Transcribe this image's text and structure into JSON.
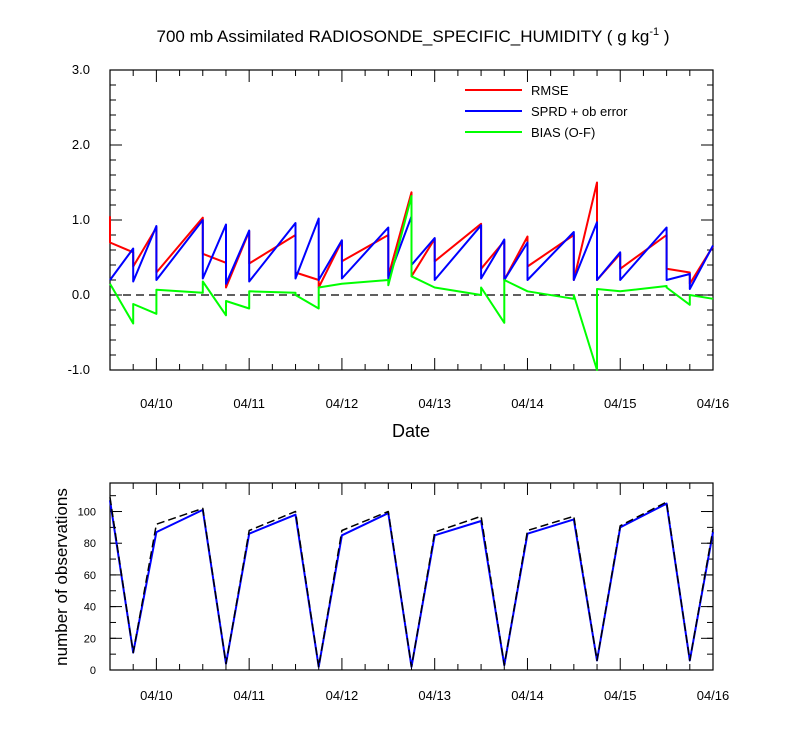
{
  "chart_data": [
    {
      "type": "line",
      "title_main": "700 mb Assimilated RADIOSONDE_SPECIFIC_HUMIDITY ( g kg",
      "title_sup": "-1",
      "title_close": " )",
      "xlabel": "Date",
      "x_ticks": [
        "04/10",
        "04/11",
        "04/12",
        "04/13",
        "04/14",
        "04/15",
        "04/16"
      ],
      "x_tick_positions": [
        1,
        2,
        3,
        4,
        5,
        6,
        7
      ],
      "xlim": [
        0.5,
        7.0
      ],
      "ylim": [
        -1.0,
        3.0
      ],
      "y_ticks": [
        "-1.0",
        "0.0",
        "1.0",
        "2.0",
        "3.0"
      ],
      "y_tick_values": [
        -1,
        0,
        1,
        2,
        3
      ],
      "zero_line": "dashed",
      "legend_placement": "top-right",
      "series": [
        {
          "name": "RMSE",
          "color": "#ff0000",
          "points": [
            [
              0.5,
              1.05
            ],
            [
              0.5,
              0.7
            ],
            [
              0.75,
              0.57
            ],
            [
              0.75,
              0.38
            ],
            [
              1.0,
              0.9
            ],
            [
              1.0,
              0.3
            ],
            [
              1.5,
              1.03
            ],
            [
              1.5,
              0.55
            ],
            [
              1.75,
              0.43
            ],
            [
              1.75,
              0.1
            ],
            [
              2.0,
              0.85
            ],
            [
              2.0,
              0.42
            ],
            [
              2.5,
              0.8
            ],
            [
              2.5,
              0.3
            ],
            [
              2.75,
              0.2
            ],
            [
              2.75,
              0.1
            ],
            [
              3.0,
              0.72
            ],
            [
              3.0,
              0.45
            ],
            [
              3.5,
              0.8
            ],
            [
              3.5,
              0.25
            ],
            [
              3.75,
              1.37
            ],
            [
              3.75,
              0.25
            ],
            [
              4.0,
              0.75
            ],
            [
              4.0,
              0.45
            ],
            [
              4.5,
              0.95
            ],
            [
              4.5,
              0.35
            ],
            [
              4.75,
              0.72
            ],
            [
              4.75,
              0.2
            ],
            [
              5.0,
              0.78
            ],
            [
              5.0,
              0.38
            ],
            [
              5.5,
              0.8
            ],
            [
              5.5,
              0.2
            ],
            [
              5.75,
              1.5
            ],
            [
              5.75,
              0.2
            ],
            [
              6.0,
              0.55
            ],
            [
              6.0,
              0.35
            ],
            [
              6.5,
              0.8
            ],
            [
              6.5,
              0.35
            ],
            [
              6.75,
              0.3
            ],
            [
              6.75,
              0.15
            ],
            [
              7.0,
              0.65
            ]
          ]
        },
        {
          "name": "SPRD + ob error",
          "color": "#0000ff",
          "points": [
            [
              0.5,
              0.2
            ],
            [
              0.75,
              0.62
            ],
            [
              0.75,
              0.18
            ],
            [
              1.0,
              0.92
            ],
            [
              1.0,
              0.2
            ],
            [
              1.5,
              1.0
            ],
            [
              1.5,
              0.22
            ],
            [
              1.75,
              0.94
            ],
            [
              1.75,
              0.15
            ],
            [
              2.0,
              0.86
            ],
            [
              2.0,
              0.18
            ],
            [
              2.5,
              0.96
            ],
            [
              2.5,
              0.22
            ],
            [
              2.75,
              1.02
            ],
            [
              2.75,
              0.2
            ],
            [
              3.0,
              0.73
            ],
            [
              3.0,
              0.22
            ],
            [
              3.5,
              0.9
            ],
            [
              3.5,
              0.22
            ],
            [
              3.75,
              1.05
            ],
            [
              3.75,
              0.4
            ],
            [
              4.0,
              0.76
            ],
            [
              4.0,
              0.2
            ],
            [
              4.5,
              0.93
            ],
            [
              4.5,
              0.22
            ],
            [
              4.75,
              0.74
            ],
            [
              4.75,
              0.2
            ],
            [
              5.0,
              0.7
            ],
            [
              5.0,
              0.2
            ],
            [
              5.5,
              0.84
            ],
            [
              5.5,
              0.2
            ],
            [
              5.75,
              0.97
            ],
            [
              5.75,
              0.2
            ],
            [
              6.0,
              0.57
            ],
            [
              6.0,
              0.2
            ],
            [
              6.5,
              0.9
            ],
            [
              6.5,
              0.2
            ],
            [
              6.75,
              0.28
            ],
            [
              6.75,
              0.08
            ],
            [
              7.0,
              0.66
            ]
          ]
        },
        {
          "name": "BIAS (O-F)",
          "color": "#00ff00",
          "points": [
            [
              0.5,
              0.15
            ],
            [
              0.75,
              -0.38
            ],
            [
              0.75,
              -0.12
            ],
            [
              1.0,
              -0.25
            ],
            [
              1.0,
              0.07
            ],
            [
              1.5,
              0.03
            ],
            [
              1.5,
              0.18
            ],
            [
              1.75,
              -0.27
            ],
            [
              1.75,
              -0.08
            ],
            [
              2.0,
              -0.18
            ],
            [
              2.0,
              0.05
            ],
            [
              2.5,
              0.03
            ],
            [
              2.5,
              0.0
            ],
            [
              2.75,
              -0.18
            ],
            [
              2.75,
              0.1
            ],
            [
              3.0,
              0.15
            ],
            [
              3.5,
              0.2
            ],
            [
              3.5,
              0.13
            ],
            [
              3.75,
              1.32
            ],
            [
              3.75,
              0.25
            ],
            [
              4.0,
              0.1
            ],
            [
              4.5,
              0.0
            ],
            [
              4.5,
              0.1
            ],
            [
              4.75,
              -0.37
            ],
            [
              4.75,
              0.2
            ],
            [
              5.0,
              0.05
            ],
            [
              5.5,
              -0.05
            ],
            [
              5.5,
              0.0
            ],
            [
              5.75,
              -1.0
            ],
            [
              5.75,
              0.08
            ],
            [
              6.0,
              0.05
            ],
            [
              6.5,
              0.12
            ],
            [
              6.5,
              0.1
            ],
            [
              6.75,
              -0.13
            ],
            [
              6.75,
              0.0
            ],
            [
              7.0,
              -0.05
            ]
          ]
        }
      ]
    },
    {
      "type": "line",
      "ylabel": "number of observations",
      "x_ticks": [
        "04/10",
        "04/11",
        "04/12",
        "04/13",
        "04/14",
        "04/15",
        "04/16"
      ],
      "x_tick_positions": [
        1,
        2,
        3,
        4,
        5,
        6,
        7
      ],
      "xlim": [
        0.5,
        7.0
      ],
      "ylim": [
        0,
        118
      ],
      "y_ticks": [
        "0",
        "20",
        "40",
        "60",
        "80",
        "100"
      ],
      "y_tick_values": [
        0,
        20,
        40,
        60,
        80,
        100
      ],
      "series": [
        {
          "color": "#0000ff",
          "style": "solid",
          "points": [
            [
              0.5,
              107
            ],
            [
              0.75,
              11
            ],
            [
              1.0,
              87
            ],
            [
              1.5,
              101
            ],
            [
              1.75,
              4
            ],
            [
              2.0,
              86
            ],
            [
              2.5,
              98
            ],
            [
              2.75,
              2
            ],
            [
              3.0,
              85
            ],
            [
              3.5,
              99
            ],
            [
              3.75,
              2
            ],
            [
              4.0,
              85
            ],
            [
              4.5,
              94
            ],
            [
              4.75,
              3
            ],
            [
              5.0,
              86
            ],
            [
              5.5,
              95
            ],
            [
              5.75,
              6
            ],
            [
              6.0,
              90
            ],
            [
              6.5,
              105
            ],
            [
              6.75,
              6
            ],
            [
              7.0,
              87
            ]
          ]
        },
        {
          "color": "#000000",
          "style": "dashed",
          "points": [
            [
              0.5,
              109
            ],
            [
              0.75,
              11
            ],
            [
              1.0,
              92
            ],
            [
              1.5,
              102
            ],
            [
              1.75,
              4
            ],
            [
              2.0,
              88
            ],
            [
              2.5,
              100
            ],
            [
              2.75,
              2
            ],
            [
              3.0,
              88
            ],
            [
              3.5,
              100
            ],
            [
              3.75,
              2
            ],
            [
              4.0,
              87
            ],
            [
              4.5,
              97
            ],
            [
              4.75,
              3
            ],
            [
              5.0,
              88
            ],
            [
              5.5,
              97
            ],
            [
              5.75,
              6
            ],
            [
              6.0,
              91
            ],
            [
              6.5,
              106
            ],
            [
              6.75,
              6
            ],
            [
              7.0,
              89
            ]
          ]
        }
      ]
    }
  ]
}
